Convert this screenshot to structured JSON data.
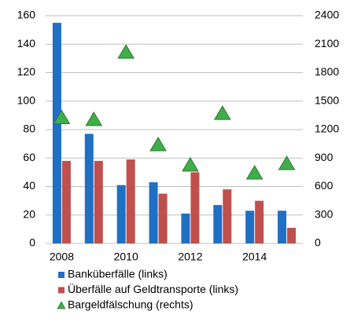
{
  "chart_data": {
    "type": "bar",
    "categories": [
      "2008",
      null,
      "2010",
      null,
      "2012",
      null,
      "2014",
      null
    ],
    "series": [
      {
        "name": "Banküberfälle (links)",
        "color": "#1f6fc5",
        "values": [
          155,
          77,
          41,
          43,
          21,
          27,
          23,
          23
        ]
      },
      {
        "name": "Überfälle auf Geldtransporte (links)",
        "color": "#c0504d",
        "values": [
          58,
          58,
          59,
          35,
          50,
          38,
          30,
          11
        ]
      },
      {
        "name": "Bargeldfälschung (rechts)",
        "color": "#3fae49",
        "type": "scatter",
        "axis": "y2",
        "values": [
          1320,
          1300,
          2010,
          1035,
          820,
          1365,
          737,
          836
        ]
      }
    ],
    "ylim": [
      0,
      160
    ],
    "yticks": [
      0,
      20,
      40,
      60,
      80,
      100,
      120,
      140,
      160
    ],
    "y2lim": [
      0,
      2400
    ],
    "y2ticks": [
      0,
      300,
      600,
      900,
      1200,
      1500,
      1800,
      2100,
      2400
    ],
    "grid": true,
    "legend": "bottom"
  }
}
